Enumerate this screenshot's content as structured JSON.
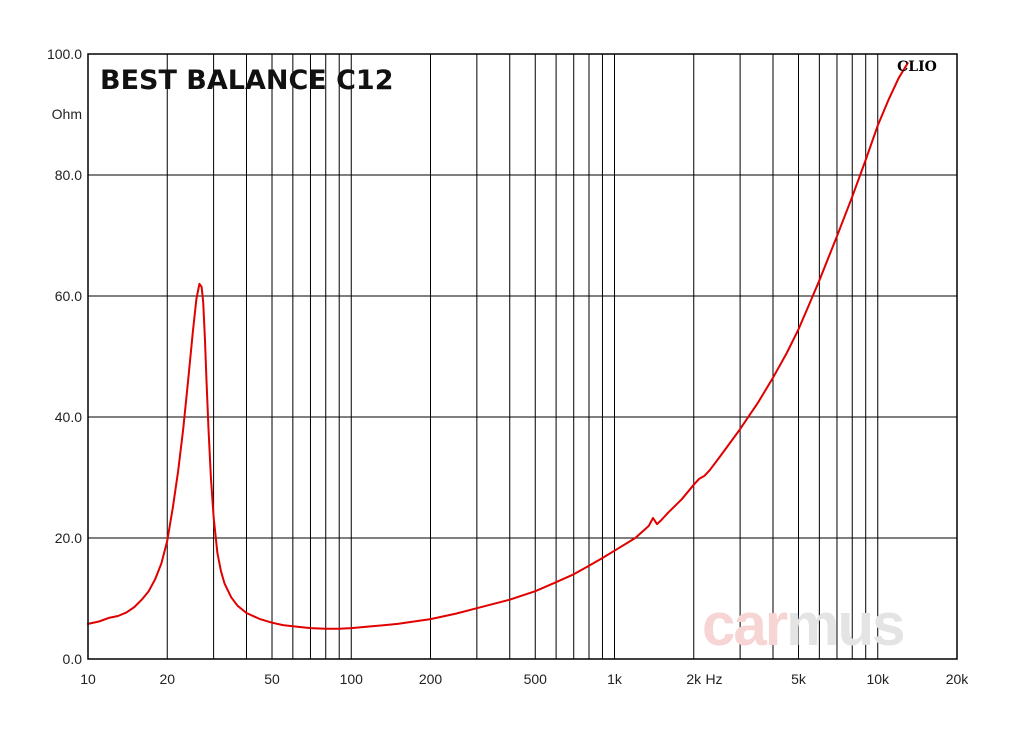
{
  "chart_data": {
    "type": "line",
    "title": "BEST BALANCE C12",
    "ylabel": "Ohm",
    "xlabel": "Hz",
    "x_scale": "log",
    "xlim": [
      10,
      20000
    ],
    "ylim": [
      0,
      100
    ],
    "grid": true,
    "y_ticks": [
      "100.0",
      "80.0",
      "60.0",
      "40.0",
      "20.0",
      "0.0"
    ],
    "x_ticks": [
      {
        "value": 10,
        "label": "10"
      },
      {
        "value": 20,
        "label": "20"
      },
      {
        "value": 50,
        "label": "50"
      },
      {
        "value": 100,
        "label": "100"
      },
      {
        "value": 200,
        "label": "200"
      },
      {
        "value": 500,
        "label": "500"
      },
      {
        "value": 1000,
        "label": "1k"
      },
      {
        "value": 2000,
        "label": "2k"
      },
      {
        "value": 5000,
        "label": "5k"
      },
      {
        "value": 10000,
        "label": "10k"
      },
      {
        "value": 20000,
        "label": "20k"
      }
    ],
    "series": [
      {
        "color": "#e00000",
        "x": [
          10,
          11,
          12,
          13,
          14,
          15,
          16,
          17,
          18,
          19,
          20,
          21,
          22,
          23,
          24,
          25,
          25.8,
          26.5,
          27,
          27.4,
          27.8,
          28.2,
          28.7,
          29.3,
          30,
          31,
          32,
          33,
          35,
          37,
          40,
          45,
          50,
          55,
          60,
          70,
          80,
          90,
          100,
          120,
          150,
          200,
          250,
          300,
          400,
          500,
          600,
          700,
          800,
          900,
          1000,
          1200,
          1350,
          1400,
          1450,
          1500,
          1600,
          1800,
          2000,
          2100,
          2200,
          2300,
          2500,
          3000,
          3500,
          4000,
          4500,
          5000,
          5500,
          6000,
          7000,
          8000,
          9000,
          10000,
          11000,
          12000,
          13000
        ],
        "y": [
          5.8,
          6.2,
          6.8,
          7.1,
          7.7,
          8.6,
          9.8,
          11.2,
          13.2,
          15.8,
          19.5,
          25,
          31,
          38,
          46,
          54,
          59.5,
          62,
          61.5,
          59,
          53,
          46,
          38,
          30,
          23.5,
          17.5,
          14.5,
          12.5,
          10.2,
          8.8,
          7.6,
          6.6,
          6.0,
          5.6,
          5.4,
          5.1,
          5.0,
          5.0,
          5.1,
          5.4,
          5.8,
          6.6,
          7.5,
          8.4,
          9.8,
          11.2,
          12.7,
          14.0,
          15.4,
          16.7,
          17.9,
          20.0,
          22.0,
          23.3,
          22.3,
          22.9,
          24.2,
          26.4,
          28.8,
          29.8,
          30.3,
          31.2,
          33.3,
          38.0,
          42.3,
          46.5,
          50.5,
          54.5,
          58.7,
          62.6,
          69.9,
          76.4,
          82.5,
          88.2,
          92.5,
          96,
          98.5
        ]
      }
    ]
  },
  "branding": {
    "clio_label": "CLIO",
    "watermark": {
      "part1": "car",
      "part2": "mus"
    }
  },
  "colors": {
    "curve": "#e00000",
    "grid": "#000000",
    "frame": "#000000",
    "watermark_car": "#f7d5d5",
    "watermark_mus": "#e4e4e4"
  }
}
